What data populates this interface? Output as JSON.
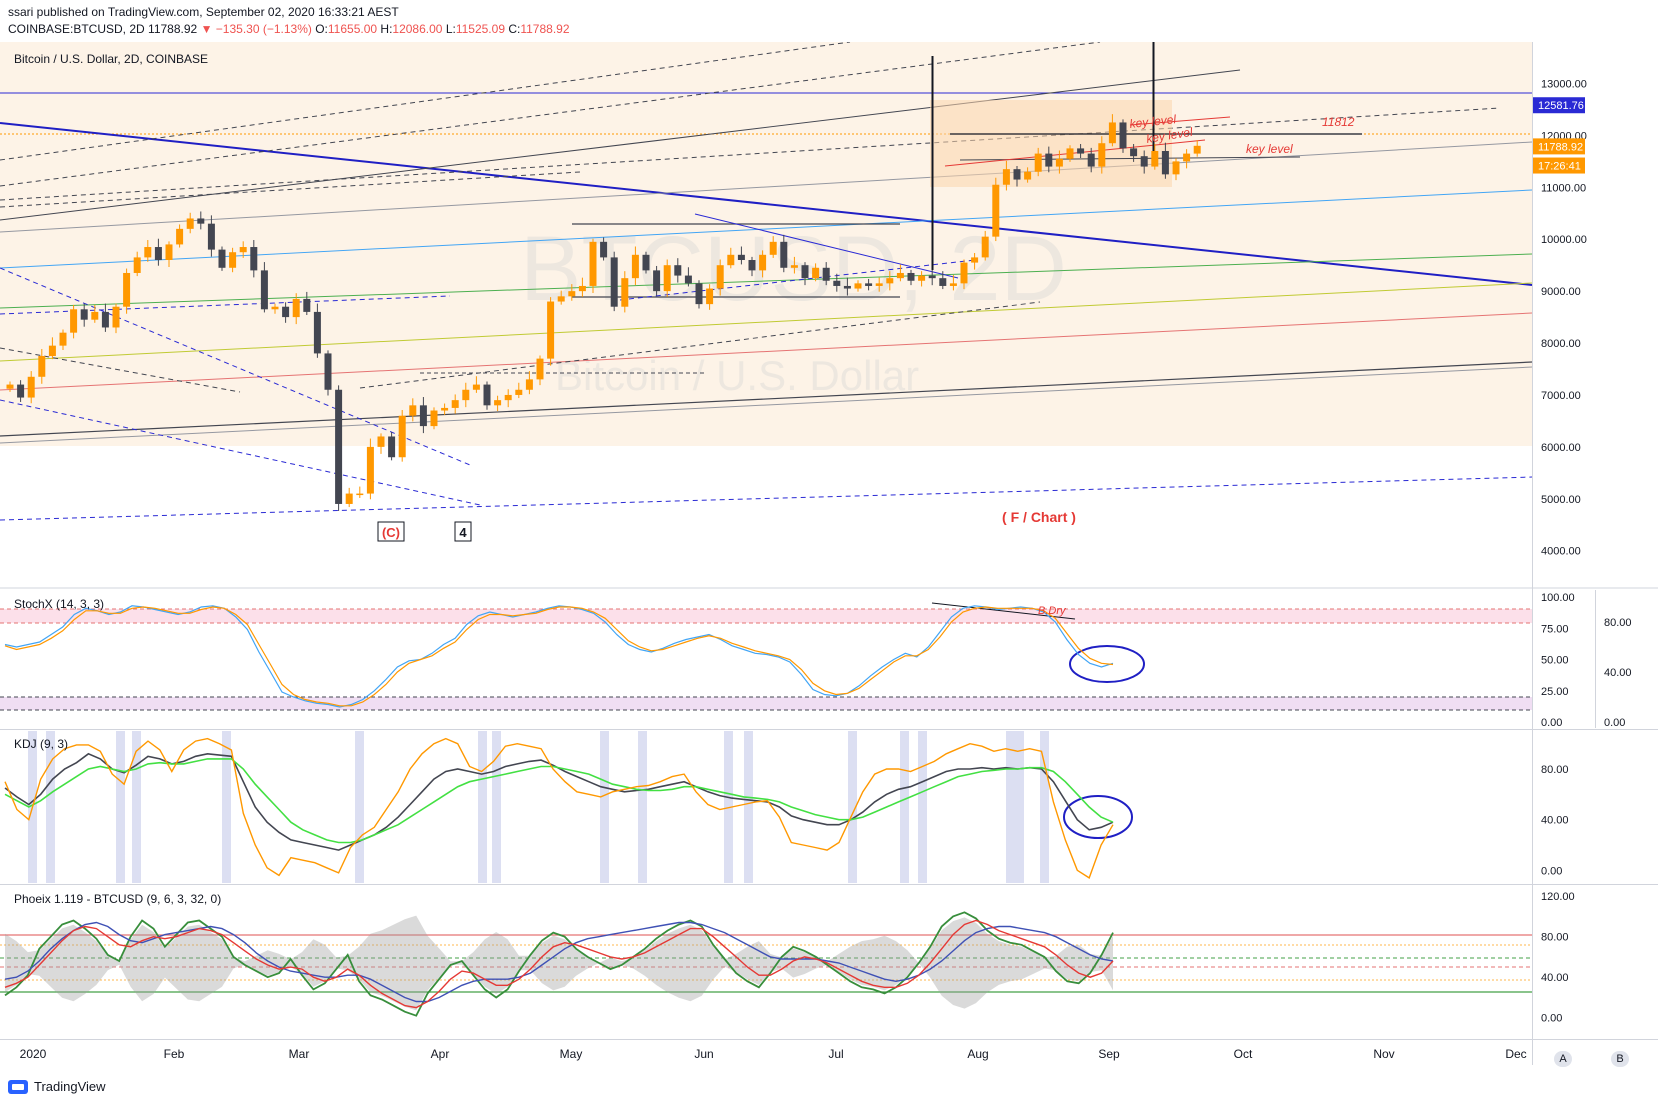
{
  "header": {
    "published": "ssari published on TradingView.com, September 02, 2020 16:33:21 AEST",
    "symbol": "COINBASE:BTCUSD, 2D",
    "last": "11788.92",
    "change_glyph": "▼",
    "change": "−135.30 (−1.13%)",
    "o_label": "O:",
    "o": "11655.00",
    "h_label": "H:",
    "h": "12086.00",
    "l_label": "L:",
    "l": "11525.09",
    "c_label": "C:",
    "c": "11788.92"
  },
  "colors": {
    "candle_up": "#ff9800",
    "candle_down": "#434651",
    "bg_band": "#fdf3e7",
    "accent_blue": "#2a2ad4",
    "annotation_red": "#e53935"
  },
  "chart_data": [
    {
      "type": "candlestick",
      "title": "Bitcoin / U.S. Dollar, 2D, COINBASE",
      "watermark_symbol": "BTCUSD, 2D",
      "watermark_name": "Bitcoin / U.S. Dollar",
      "ylim": [
        3300,
        13800
      ],
      "y_ticks": [
        4000,
        5000,
        6000,
        7000,
        8000,
        9000,
        10000,
        11000,
        12000,
        13000
      ],
      "y_tick_labels": [
        "4000.00",
        "5000.00",
        "6000.00",
        "7000.00",
        "8000.00",
        "9000.00",
        "10000.00",
        "11000.00",
        "12000.00",
        "13000.00"
      ],
      "price_tags": [
        {
          "value": 12581.76,
          "label": "12581.76",
          "color": "#2a2ad4"
        },
        {
          "value": 11788.92,
          "label": "11788.92",
          "color": "#ff9800"
        },
        {
          "value": 11420,
          "label": "17:26:41",
          "color": "#ff9800"
        }
      ],
      "annotations": [
        "(C)",
        "4",
        "( F / Chart )",
        "key level",
        "key level",
        "key level",
        "11812",
        "B.Dry"
      ],
      "closes": [
        7200,
        6950,
        7350,
        7750,
        7950,
        8200,
        8650,
        8450,
        8600,
        8300,
        8700,
        9350,
        9650,
        9850,
        9600,
        9900,
        10200,
        10400,
        10300,
        9800,
        9450,
        9750,
        9850,
        9400,
        8650,
        8700,
        8500,
        8850,
        8600,
        7800,
        7100,
        4900,
        5100,
        5100,
        6000,
        6200,
        5800,
        6600,
        6800,
        6400,
        6700,
        6750,
        6900,
        7100,
        7200,
        6800,
        6900,
        7000,
        7100,
        7300,
        7700,
        8800,
        8900,
        9000,
        9100,
        9950,
        9650,
        8700,
        9250,
        9700,
        9400,
        9000,
        9500,
        9300,
        9150,
        8750,
        9050,
        9500,
        9700,
        9600,
        9400,
        9700,
        9950,
        9450,
        9500,
        9250,
        9450,
        9200,
        9100,
        9050,
        9150,
        9100,
        9150,
        9250,
        9350,
        9200,
        9300,
        9250,
        9100,
        9150,
        9550,
        9650,
        10050,
        11050,
        11350,
        11150,
        11300,
        11650,
        11400,
        11550,
        11750,
        11650,
        11400,
        11850,
        12250,
        11750,
        11600,
        11400,
        11700,
        11250,
        11500,
        11650,
        11800
      ]
    },
    {
      "type": "line",
      "title": "StochX (14, 3, 3)",
      "ylim": [
        0,
        100
      ],
      "y_tick_labels": [
        "100.00",
        "75.00",
        "50.00",
        "25.00",
        "0.00"
      ],
      "secondary_ticks": [
        "80.00",
        "40.00",
        "0.00"
      ],
      "annotation": "B.Dry",
      "series": [
        {
          "values": [
            62,
            60,
            62,
            64,
            70,
            76,
            86,
            91,
            89,
            86,
            88,
            93,
            92,
            90,
            88,
            86,
            88,
            92,
            93,
            91,
            84,
            74,
            56,
            40,
            24,
            20,
            17,
            15,
            14,
            12,
            14,
            18,
            25,
            34,
            44,
            49,
            50,
            55,
            62,
            67,
            78,
            85,
            88,
            86,
            84,
            86,
            88,
            91,
            93,
            92,
            90,
            87,
            80,
            70,
            62,
            58,
            56,
            59,
            63,
            66,
            68,
            70,
            66,
            61,
            58,
            55,
            54,
            52,
            48,
            38,
            26,
            22,
            21,
            23,
            29,
            37,
            44,
            50,
            55,
            52,
            60,
            72,
            84,
            91,
            93,
            92,
            90,
            91,
            92,
            91,
            88,
            80,
            66,
            54,
            47,
            44,
            47
          ]
        },
        {
          "values": [
            61,
            58,
            60,
            62,
            67,
            73,
            82,
            89,
            89,
            87,
            87,
            91,
            92,
            91,
            89,
            87,
            87,
            90,
            92,
            91,
            86,
            78,
            62,
            46,
            30,
            22,
            18,
            16,
            15,
            13,
            13,
            16,
            22,
            30,
            40,
            47,
            50,
            53,
            59,
            64,
            74,
            82,
            86,
            86,
            85,
            86,
            87,
            90,
            92,
            92,
            91,
            88,
            83,
            74,
            65,
            60,
            57,
            58,
            61,
            64,
            67,
            69,
            67,
            63,
            60,
            57,
            55,
            53,
            50,
            42,
            31,
            25,
            22,
            23,
            27,
            34,
            41,
            48,
            53,
            53,
            58,
            68,
            80,
            88,
            91,
            92,
            91,
            91,
            91,
            91,
            89,
            83,
            71,
            59,
            51,
            47,
            46
          ]
        }
      ]
    },
    {
      "type": "line",
      "title": "KDJ (9, 3)",
      "ylim": [
        -10,
        110
      ],
      "y_tick_labels": [
        "80.00",
        "40.00",
        "0.00"
      ],
      "series": [
        {
          "values": [
            65,
            58,
            52,
            60,
            72,
            80,
            85,
            92,
            88,
            80,
            77,
            83,
            90,
            88,
            84,
            86,
            90,
            92,
            91,
            90,
            70,
            50,
            38,
            30,
            24,
            22,
            20,
            18,
            16,
            20,
            24,
            28,
            34,
            42,
            52,
            62,
            72,
            78,
            80,
            78,
            76,
            78,
            82,
            84,
            86,
            87,
            83,
            78,
            74,
            70,
            66,
            64,
            62,
            63,
            64,
            66,
            68,
            70,
            66,
            62,
            59,
            57,
            56,
            55,
            54,
            50,
            43,
            40,
            38,
            36,
            36,
            40,
            46,
            54,
            60,
            64,
            66,
            70,
            74,
            78,
            80,
            80,
            81,
            80,
            81,
            80,
            81,
            80,
            70,
            55,
            40,
            32,
            34,
            38
          ]
        },
        {
          "values": [
            60,
            55,
            50,
            55,
            62,
            68,
            74,
            80,
            82,
            80,
            78,
            80,
            84,
            85,
            84,
            84,
            86,
            88,
            88,
            88,
            80,
            68,
            58,
            48,
            38,
            32,
            28,
            24,
            22,
            22,
            24,
            28,
            32,
            36,
            42,
            48,
            54,
            60,
            66,
            70,
            72,
            74,
            76,
            78,
            80,
            82,
            82,
            80,
            78,
            76,
            72,
            68,
            66,
            64,
            63,
            63,
            64,
            66,
            66,
            64,
            62,
            60,
            58,
            57,
            56,
            54,
            50,
            47,
            44,
            42,
            40,
            40,
            42,
            46,
            50,
            54,
            58,
            62,
            66,
            70,
            74,
            76,
            78,
            79,
            80,
            80,
            81,
            81,
            78,
            70,
            60,
            50,
            42,
            38
          ]
        },
        {
          "values": [
            70,
            48,
            40,
            72,
            88,
            96,
            99,
            99,
            94,
            76,
            68,
            94,
            102,
            95,
            78,
            95,
            102,
            104,
            100,
            95,
            45,
            20,
            2,
            -4,
            10,
            8,
            6,
            2,
            -2,
            18,
            28,
            34,
            48,
            62,
            80,
            92,
            100,
            104,
            100,
            82,
            78,
            86,
            98,
            100,
            98,
            96,
            80,
            70,
            62,
            60,
            58,
            62,
            64,
            66,
            67,
            70,
            74,
            76,
            62,
            52,
            48,
            50,
            52,
            54,
            55,
            42,
            22,
            20,
            18,
            16,
            22,
            42,
            62,
            76,
            80,
            80,
            78,
            82,
            86,
            92,
            96,
            100,
            98,
            94,
            96,
            94,
            96,
            94,
            54,
            24,
            0,
            -6,
            20,
            36
          ]
        }
      ]
    },
    {
      "type": "line",
      "title": "Phoeix 1.119 - BTCUSD (9, 6, 3, 32, 0)",
      "ylim": [
        -20,
        130
      ],
      "y_tick_labels": [
        "120.00",
        "80.00",
        "40.00",
        "0.00"
      ],
      "series": [
        {
          "values": [
            22,
            30,
            42,
            68,
            80,
            92,
            96,
            88,
            78,
            62,
            56,
            80,
            96,
            88,
            70,
            82,
            94,
            96,
            88,
            80,
            60,
            52,
            46,
            40,
            44,
            58,
            42,
            28,
            34,
            48,
            62,
            36,
            22,
            18,
            12,
            6,
            2,
            24,
            38,
            52,
            56,
            42,
            28,
            20,
            28,
            46,
            62,
            76,
            84,
            80,
            68,
            60,
            54,
            48,
            52,
            60,
            68,
            78,
            86,
            92,
            96,
            90,
            72,
            58,
            44,
            36,
            30,
            44,
            60,
            70,
            66,
            60,
            52,
            44,
            36,
            30,
            28,
            24,
            30,
            40,
            54,
            70,
            90,
            100,
            104,
            98,
            86,
            78,
            74,
            72,
            66,
            60,
            46,
            36,
            34,
            44,
            62,
            84
          ]
        },
        {
          "values": [
            38,
            40,
            46,
            56,
            68,
            78,
            86,
            92,
            94,
            90,
            82,
            76,
            74,
            78,
            82,
            84,
            86,
            88,
            90,
            88,
            82,
            74,
            64,
            56,
            50,
            46,
            44,
            42,
            40,
            40,
            42,
            42,
            38,
            32,
            26,
            20,
            16,
            16,
            20,
            26,
            32,
            36,
            38,
            38,
            38,
            40,
            44,
            52,
            60,
            68,
            74,
            78,
            80,
            82,
            84,
            86,
            88,
            90,
            92,
            94,
            94,
            92,
            88,
            84,
            78,
            72,
            66,
            60,
            58,
            58,
            58,
            58,
            56,
            54,
            50,
            46,
            42,
            38,
            36,
            38,
            42,
            48,
            56,
            66,
            76,
            84,
            88,
            90,
            90,
            88,
            86,
            84,
            80,
            74,
            68,
            62,
            58,
            56
          ]
        },
        {
          "values": [
            30,
            34,
            40,
            52,
            64,
            76,
            86,
            90,
            88,
            80,
            72,
            70,
            76,
            80,
            78,
            80,
            84,
            88,
            86,
            82,
            74,
            66,
            58,
            52,
            48,
            50,
            48,
            40,
            36,
            40,
            48,
            42,
            32,
            24,
            18,
            12,
            10,
            16,
            26,
            38,
            46,
            44,
            38,
            32,
            32,
            38,
            48,
            60,
            70,
            74,
            72,
            68,
            64,
            60,
            58,
            60,
            64,
            70,
            76,
            82,
            88,
            88,
            80,
            70,
            60,
            50,
            42,
            42,
            48,
            56,
            60,
            58,
            54,
            48,
            42,
            36,
            32,
            30,
            30,
            34,
            42,
            54,
            68,
            82,
            92,
            96,
            92,
            86,
            82,
            78,
            74,
            70,
            62,
            52,
            44,
            40,
            44,
            56
          ]
        }
      ]
    }
  ],
  "x_axis": {
    "labels": [
      "2020",
      "Feb",
      "Mar",
      "Apr",
      "May",
      "Jun",
      "Jul",
      "Aug",
      "Sep",
      "Oct",
      "Nov",
      "Dec"
    ]
  },
  "scale_buttons": {
    "a": "A",
    "b": "B"
  },
  "footer": {
    "brand": "TradingView"
  }
}
